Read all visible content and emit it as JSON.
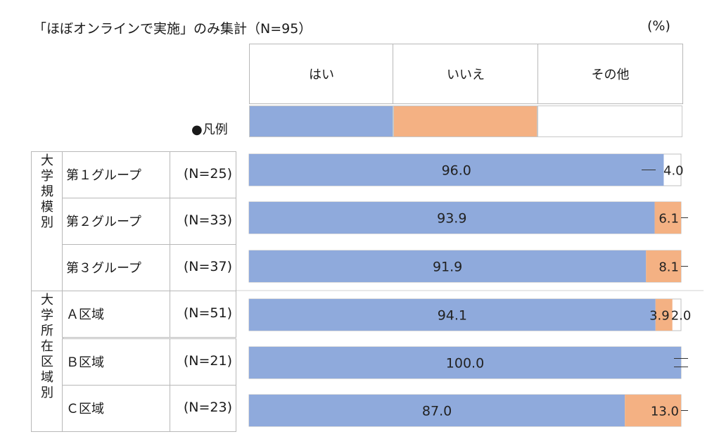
{
  "title": "「ほぼオンラインで実施」のみ集計（N=95）",
  "unit": "(%)",
  "legend_label": "●凡例",
  "chart_data": {
    "type": "bar",
    "orientation": "horizontal-stacked-100",
    "categories": [
      "はい",
      "いいえ",
      "その他"
    ],
    "colors": [
      "#8faadc",
      "#f4b183",
      "#ffffff"
    ],
    "groups": [
      {
        "label": "大学規模別",
        "chars": [
          "大",
          "学",
          "規",
          "模",
          "別"
        ]
      },
      {
        "label": "大学所在区域別",
        "chars": [
          "大",
          "学",
          "所",
          "在",
          "区",
          "域",
          "別"
        ]
      }
    ],
    "rows": [
      {
        "label": "第１グループ",
        "n": "(N=25)",
        "values": [
          96.0,
          0,
          4.0
        ],
        "labels": [
          "96.0",
          "",
          "4.0"
        ]
      },
      {
        "label": "第２グループ",
        "n": "(N=33)",
        "values": [
          93.9,
          6.1,
          0
        ],
        "labels": [
          "93.9",
          "6.1",
          ""
        ]
      },
      {
        "label": "第３グループ",
        "n": "(N=37)",
        "values": [
          91.9,
          8.1,
          0
        ],
        "labels": [
          "91.9",
          "8.1",
          ""
        ]
      },
      {
        "label": "Ａ区域",
        "n": "(N=51)",
        "values": [
          94.1,
          3.9,
          2.0
        ],
        "labels": [
          "94.1",
          "3.9",
          "2.0"
        ]
      },
      {
        "label": "Ｂ区域",
        "n": "(N=21)",
        "values": [
          100.0,
          0,
          0
        ],
        "labels": [
          "100.0",
          "",
          ""
        ]
      },
      {
        "label": "Ｃ区域",
        "n": "(N=23)",
        "values": [
          87.0,
          13.0,
          0
        ],
        "labels": [
          "87.0",
          "13.0",
          ""
        ]
      }
    ]
  }
}
